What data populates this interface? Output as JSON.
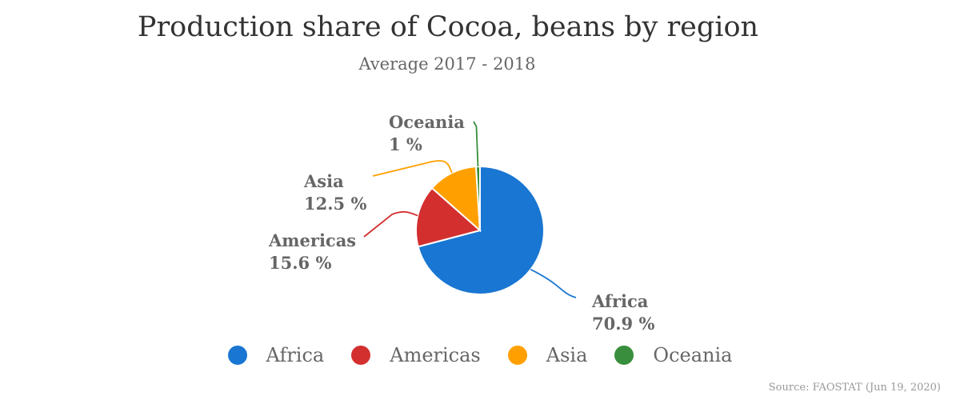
{
  "chart_data": {
    "type": "pie",
    "title": "Production share of Cocoa, beans by region",
    "subtitle": "Average 2017 - 2018",
    "slices": [
      {
        "name": "Africa",
        "value": 70.9,
        "label": "70.9 %",
        "color": "#1976d2"
      },
      {
        "name": "Americas",
        "value": 15.6,
        "label": "15.6 %",
        "color": "#d32f2f"
      },
      {
        "name": "Asia",
        "value": 12.5,
        "label": "12.5 %",
        "color": "#ffa000"
      },
      {
        "name": "Oceania",
        "value": 1.0,
        "label": "1 %",
        "color": "#388e3c"
      }
    ],
    "legend_position": "bottom",
    "source": "Source: FAOSTAT (Jun 19, 2020)"
  }
}
